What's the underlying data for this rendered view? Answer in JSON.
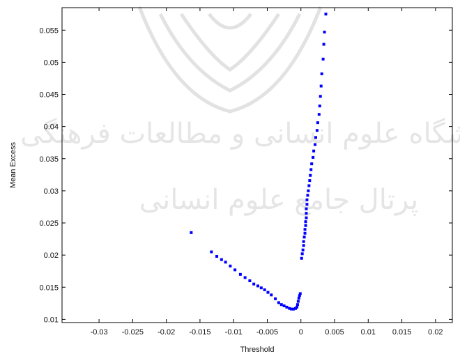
{
  "watermark": {
    "line1": "پژوهشگاه علوم انسانی و مطالعات فرهنگی",
    "line2": "پرتال جامع علوم انسانی"
  },
  "colors": {
    "points": "#0000ff",
    "axes": "#000000",
    "watermark": "#cfcfcf"
  },
  "chart_data": {
    "type": "scatter",
    "xlabel": "Threshold",
    "ylabel": "Mean Excess",
    "xlim": [
      -0.0355,
      0.0225
    ],
    "ylim": [
      0.0095,
      0.0585
    ],
    "xticks": [
      -0.03,
      -0.025,
      -0.02,
      -0.015,
      -0.01,
      -0.005,
      0,
      0.005,
      0.01,
      0.015,
      0.02
    ],
    "xtick_labels": [
      "-0.03",
      "-0.025",
      "-0.02",
      "-0.015",
      "-0.01",
      "-0.005",
      "0",
      "0.005",
      "0.01",
      "0.015",
      "0.02"
    ],
    "yticks": [
      0.01,
      0.015,
      0.02,
      0.025,
      0.03,
      0.035,
      0.04,
      0.045,
      0.05,
      0.055
    ],
    "ytick_labels": [
      "0.01",
      "0.015",
      "0.02",
      "0.025",
      "0.03",
      "0.035",
      "0.04",
      "0.045",
      "0.05",
      "0.055"
    ],
    "grid": false,
    "series": [
      {
        "points": [
          [
            -0.0163,
            0.0235
          ],
          [
            -0.0133,
            0.0205
          ],
          [
            -0.0125,
            0.0198
          ],
          [
            -0.0118,
            0.0193
          ],
          [
            -0.0112,
            0.0189
          ],
          [
            -0.0105,
            0.0183
          ],
          [
            -0.0098,
            0.0177
          ],
          [
            -0.009,
            0.017
          ],
          [
            -0.0083,
            0.0165
          ],
          [
            -0.0076,
            0.016
          ],
          [
            -0.007,
            0.0155
          ],
          [
            -0.0064,
            0.0152
          ],
          [
            -0.0059,
            0.0149
          ],
          [
            -0.0054,
            0.0146
          ],
          [
            -0.0049,
            0.0142
          ],
          [
            -0.0044,
            0.0138
          ],
          [
            -0.0038,
            0.0132
          ],
          [
            -0.0033,
            0.0126
          ],
          [
            -0.0029,
            0.0123
          ],
          [
            -0.0025,
            0.0121
          ],
          [
            -0.0021,
            0.0119
          ],
          [
            -0.0017,
            0.0117
          ],
          [
            -0.0014,
            0.0116
          ],
          [
            -0.0011,
            0.0116
          ],
          [
            -0.0008,
            0.0117
          ],
          [
            -0.0006,
            0.0119
          ],
          [
            -0.0005,
            0.0123
          ],
          [
            -0.0004,
            0.0128
          ],
          [
            -0.0003,
            0.0133
          ],
          [
            -0.0002,
            0.0137
          ],
          [
            -0.0001,
            0.014
          ],
          [
            0.0001,
            0.0195
          ],
          [
            0.0002,
            0.0202
          ],
          [
            0.0003,
            0.0208
          ],
          [
            0.0004,
            0.0215
          ],
          [
            0.0004,
            0.0221
          ],
          [
            0.0005,
            0.0228
          ],
          [
            0.0006,
            0.0234
          ],
          [
            0.0006,
            0.024
          ],
          [
            0.0007,
            0.0246
          ],
          [
            0.0007,
            0.0252
          ],
          [
            0.0008,
            0.0258
          ],
          [
            0.0008,
            0.0265
          ],
          [
            0.0008,
            0.0272
          ],
          [
            0.0009,
            0.0279
          ],
          [
            0.0009,
            0.0286
          ],
          [
            0.001,
            0.0293
          ],
          [
            0.0011,
            0.03
          ],
          [
            0.0012,
            0.0308
          ],
          [
            0.0013,
            0.0316
          ],
          [
            0.0014,
            0.0324
          ],
          [
            0.0015,
            0.0333
          ],
          [
            0.0016,
            0.0342
          ],
          [
            0.0018,
            0.0352
          ],
          [
            0.0019,
            0.0362
          ],
          [
            0.0021,
            0.0372
          ],
          [
            0.0022,
            0.0383
          ],
          [
            0.0024,
            0.0394
          ],
          [
            0.0025,
            0.0406
          ],
          [
            0.0027,
            0.0419
          ],
          [
            0.0028,
            0.0432
          ],
          [
            0.0029,
            0.0447
          ],
          [
            0.003,
            0.0463
          ],
          [
            0.0031,
            0.0482
          ],
          [
            0.0033,
            0.0505
          ],
          [
            0.0034,
            0.0528
          ],
          [
            0.0035,
            0.0547
          ],
          [
            0.0037,
            0.0575
          ]
        ]
      }
    ]
  }
}
